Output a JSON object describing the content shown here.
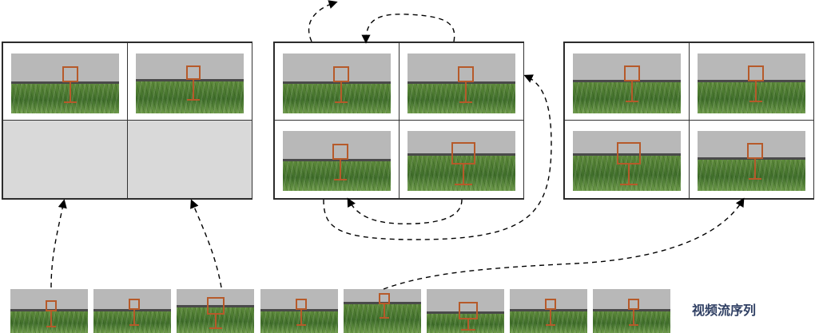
{
  "caption": "视频流序列",
  "colors": {
    "frame_border": "#b65a2a",
    "empty_cell": "#d9d9d9",
    "arrow": "#000000",
    "caption": "#2f3f63"
  },
  "panels": [
    {
      "name": "panel-left",
      "cells": [
        "frame",
        "frame",
        "empty",
        "empty"
      ]
    },
    {
      "name": "panel-middle",
      "cells": [
        "frame",
        "frame",
        "frame",
        "frame"
      ]
    },
    {
      "name": "panel-right",
      "cells": [
        "frame",
        "frame",
        "frame",
        "frame"
      ]
    }
  ],
  "sequence_count": 8
}
